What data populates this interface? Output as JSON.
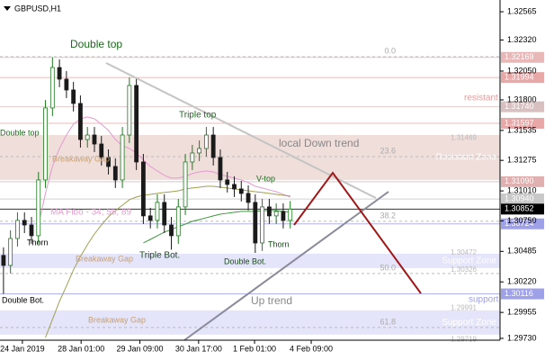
{
  "chart_data": {
    "type": "candlestick",
    "title": "GBPUSD,H1",
    "open": [
      1.3045,
      1.30363,
      1.30597,
      1.30754,
      1.30714,
      1.30621,
      1.31105,
      1.3173,
      1.32081,
      1.3198,
      1.31886,
      1.31769,
      1.31456,
      1.31495,
      1.31417,
      1.313,
      1.31222,
      1.31105,
      1.31495,
      1.31925,
      1.31261,
      1.30793,
      1.30754,
      1.3091,
      1.30714,
      1.30621,
      1.30871,
      1.31261,
      1.31339,
      1.31378,
      1.31495,
      1.313,
      1.31105,
      1.31066,
      1.31027,
      1.30988,
      1.3091,
      1.30558,
      1.30871,
      1.30793,
      1.30832,
      1.30754
    ],
    "high": [
      1.3052,
      1.30667,
      1.30824,
      1.30824,
      1.30784,
      1.31175,
      1.318,
      1.32169,
      1.32151,
      1.3205,
      1.31956,
      1.31839,
      1.31565,
      1.31565,
      1.31487,
      1.3137,
      1.31292,
      1.31565,
      1.31995,
      1.31995,
      1.31331,
      1.30863,
      1.3098,
      1.3098,
      1.30784,
      1.30941,
      1.31331,
      1.31409,
      1.31448,
      1.31565,
      1.31565,
      1.3137,
      1.31175,
      1.31136,
      1.31097,
      1.31058,
      1.3098,
      1.30941,
      1.30941,
      1.30902,
      1.30902,
      1.30922
    ],
    "low": [
      1.30116,
      1.30293,
      1.30527,
      1.30644,
      1.30551,
      1.30551,
      1.31035,
      1.3166,
      1.3191,
      1.31816,
      1.31699,
      1.31386,
      1.31386,
      1.31347,
      1.3123,
      1.31152,
      1.31035,
      1.31035,
      1.31425,
      1.31191,
      1.30723,
      1.30684,
      1.30684,
      1.30644,
      1.305,
      1.30551,
      1.30801,
      1.31191,
      1.31269,
      1.31308,
      1.3123,
      1.31035,
      1.30996,
      1.30957,
      1.30918,
      1.3084,
      1.30472,
      1.30488,
      1.30723,
      1.30723,
      1.30684,
      1.30684
    ],
    "close": [
      1.30363,
      1.30597,
      1.30754,
      1.30714,
      1.30621,
      1.31105,
      1.3173,
      1.32081,
      1.3198,
      1.31886,
      1.31769,
      1.31456,
      1.31495,
      1.31417,
      1.313,
      1.31222,
      1.31105,
      1.31495,
      1.31925,
      1.31261,
      1.30793,
      1.30754,
      1.3091,
      1.30714,
      1.30621,
      1.30871,
      1.31261,
      1.31339,
      1.31378,
      1.31495,
      1.313,
      1.31105,
      1.31066,
      1.31027,
      1.30988,
      1.3091,
      1.30558,
      1.30871,
      1.30793,
      1.30832,
      1.30754,
      1.30852
    ],
    "up_color": "#1f7a1f",
    "down_color": "#1a1a1a",
    "series": [
      {
        "color": "#e39bd0",
        "values": [
          null,
          null,
          null,
          null,
          null,
          1.30714,
          1.30988,
          1.31222,
          1.31378,
          1.31495,
          1.31589,
          1.31636,
          1.31652,
          1.31636,
          1.31589,
          1.31535,
          1.31456,
          1.31402,
          1.31378,
          1.31339,
          1.31277,
          1.31222,
          1.31183,
          1.31144,
          1.31121,
          1.31121,
          1.31136,
          1.3116,
          1.31175,
          1.31183,
          1.31175,
          1.31152,
          1.31136,
          1.31121,
          1.31105,
          1.31082,
          1.3105,
          1.31035,
          1.31019,
          1.31003,
          1.3098,
          1.30957
        ]
      },
      {
        "color": "#a0a050",
        "values": [
          null,
          null,
          null,
          null,
          null,
          null,
          1.29738,
          1.29894,
          1.30051,
          1.30184,
          1.30324,
          1.30441,
          1.30543,
          1.30636,
          1.30714,
          1.30785,
          1.30839,
          1.30886,
          1.30933,
          1.30957,
          1.30972,
          1.3098,
          1.30988,
          1.30996,
          1.31003,
          1.31011,
          1.31027,
          1.31035,
          1.31042,
          1.3105,
          1.3105,
          1.31042,
          1.31035,
          1.31027,
          1.31019,
          1.31011,
          1.31003,
          1.30996,
          1.30988,
          1.3098,
          1.30972,
          1.30965
        ]
      },
      {
        "color": "#3c9a3c",
        "values": [
          null,
          null,
          null,
          null,
          null,
          null,
          null,
          null,
          null,
          null,
          null,
          null,
          null,
          null,
          null,
          null,
          null,
          null,
          null,
          null,
          1.30558,
          1.30589,
          1.30621,
          1.30652,
          1.30675,
          1.30699,
          1.30722,
          1.30746,
          1.30761,
          1.30777,
          1.30793,
          1.30808,
          1.30816,
          1.30824,
          1.30832,
          1.30832,
          1.30832,
          1.30839,
          1.30839,
          1.30839,
          1.30832,
          1.30824
        ]
      }
    ],
    "xlim": [
      -0.5,
      71
    ],
    "xticks": [
      {
        "value": 2.7,
        "label": "24 Jan 2019"
      },
      {
        "value": 11.1,
        "label": "28 Jan 01:00"
      },
      {
        "value": 19.5,
        "label": "29 Jan 09:00"
      },
      {
        "value": 27.9,
        "label": "30 Jan 17:00"
      },
      {
        "value": 35.9,
        "label": "1 Feb 01:00"
      },
      {
        "value": 44,
        "label": "4 Feb 09:00"
      }
    ],
    "ylim": [
      1.29714,
      1.32667
    ],
    "yticks": [
      1.32565,
      {
        "value": 1.3232,
        "label": "1.32320"
      },
      {
        "value": 1.3205,
        "label": "1.32050"
      },
      {
        "value": 1.318,
        "label": "1.31800"
      },
      1.31535,
      1.31275,
      {
        "value": 1.3101,
        "label": "1.31010"
      },
      {
        "value": 1.3075,
        "label": "1.30750"
      },
      1.30485,
      {
        "value": 1.3022,
        "label": "1.30220"
      },
      1.29955,
      {
        "value": 1.2973,
        "label": "1.29730"
      }
    ],
    "zones": [
      {
        "name": "Resistant Zone",
        "from": 1.31495,
        "to": 1.31105,
        "color": "#f0dedb"
      },
      {
        "name": "Support Zone",
        "from": 1.30465,
        "to": 1.3034,
        "color": "#e4e4fa"
      },
      {
        "name": "Support Zone",
        "from": 1.29973,
        "to": 1.29762,
        "color": "#e4e4fa"
      }
    ],
    "levels": {
      "values": [
        1.32169,
        1.31994,
        1.3174,
        1.31597,
        1.3109,
        1.3094,
        1.30852,
        1.30724,
        1.30116
      ],
      "value_labels": [
        "1.32169",
        "1.31994",
        "1.31740",
        "1.31597",
        "1.31090",
        "1.30940",
        "1.30852",
        "1.30724",
        "1.30116"
      ],
      "colors": [
        "#e8b8b8",
        "#e8a8a8",
        "#d8c0c0",
        "#e8a8a8",
        "#e0b0b0",
        "#c8c8c8",
        "#000000",
        "#9ea0e8",
        "#9ea0e8"
      ]
    },
    "fib": {
      "labels": [
        "0.0",
        "23.6",
        "38.2",
        "50.0",
        "61.8"
      ],
      "prices": [
        1.32175,
        1.31308,
        1.30746,
        1.30293,
        1.29824
      ],
      "color": "#bbbbbb"
    },
    "notes": {
      "values": [
        1.31469,
        1.30472,
        1.30326,
        1.29991,
        1.29719
      ],
      "value_labels": [
        "1.31469",
        "1.30472",
        "1.30326",
        "1.29991",
        "1.29719"
      ]
    },
    "annotations": [
      "Double top",
      "Double top",
      "Breakaway Gap",
      "MA Fibo - 34; 55; 89",
      "Thorn",
      "Breakaway Gap",
      "Double Bot.",
      "Breakaway Gap",
      "Triple Bot.",
      "Triple top",
      "Double Bot.",
      "Thorn",
      "V-top",
      "local Down trend",
      "Up trend",
      "resistant",
      "support"
    ]
  }
}
